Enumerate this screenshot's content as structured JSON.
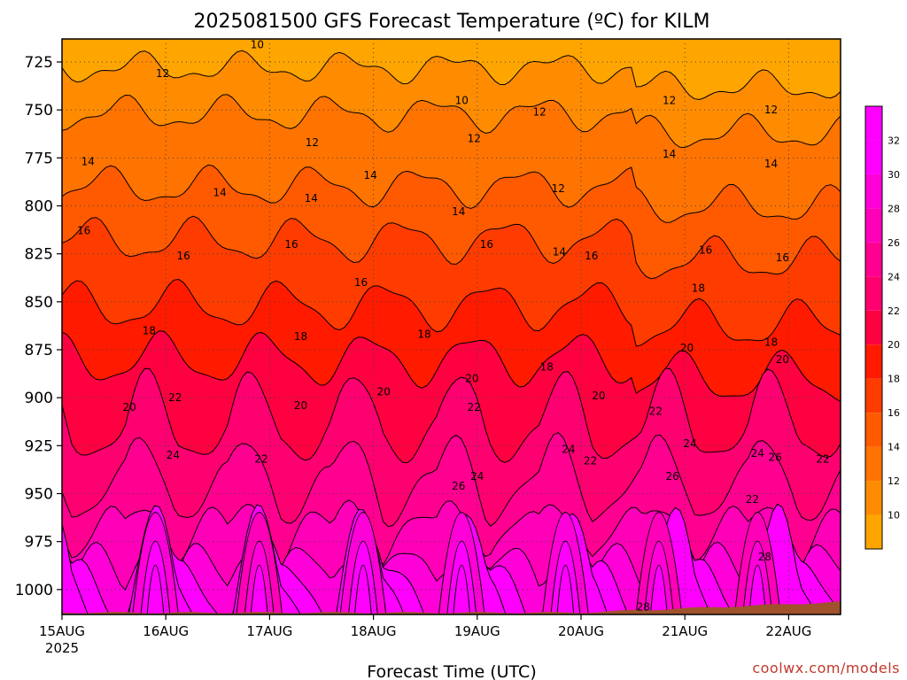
{
  "chart_data": {
    "type": "heatmap",
    "title": "2025081500 GFS Forecast Temperature (ºC) for KILM",
    "xlabel": "Forecast Time (UTC)",
    "ylabel": "",
    "x_ticks": [
      {
        "label": "15AUG",
        "sublabel": "2025",
        "day": 0
      },
      {
        "label": "16AUG",
        "day": 1
      },
      {
        "label": "17AUG",
        "day": 2
      },
      {
        "label": "18AUG",
        "day": 3
      },
      {
        "label": "19AUG",
        "day": 4
      },
      {
        "label": "20AUG",
        "day": 5
      },
      {
        "label": "21AUG",
        "day": 6
      },
      {
        "label": "22AUG",
        "day": 7
      }
    ],
    "xlim": [
      0,
      7.5
    ],
    "y_ticks": [
      725,
      750,
      775,
      800,
      825,
      850,
      875,
      900,
      925,
      950,
      975,
      1000
    ],
    "ylim": [
      1013,
      713
    ],
    "grid": true,
    "colorbar": {
      "levels": [
        10,
        12,
        14,
        16,
        18,
        20,
        22,
        24,
        26,
        28,
        30,
        32
      ],
      "colors": [
        "#ffa500",
        "#ff8c00",
        "#ff7300",
        "#ff5a00",
        "#ff3c00",
        "#ff1a00",
        "#ff0040",
        "#ff0070",
        "#ff0090",
        "#ff00b8",
        "#ff00d8",
        "#ff00ff",
        "#ff00ff"
      ]
    },
    "contour_labels": [
      {
        "value": "10",
        "day": 1.88,
        "p": 716
      },
      {
        "value": "10",
        "day": 3.85,
        "p": 745
      },
      {
        "value": "12",
        "day": 0.97,
        "p": 731
      },
      {
        "value": "12",
        "day": 2.41,
        "p": 767
      },
      {
        "value": "12",
        "day": 3.97,
        "p": 765
      },
      {
        "value": "12",
        "day": 4.6,
        "p": 751
      },
      {
        "value": "12",
        "day": 5.85,
        "p": 745
      },
      {
        "value": "12",
        "day": 6.83,
        "p": 750
      },
      {
        "value": "12",
        "day": 4.78,
        "p": 791
      },
      {
        "value": "14",
        "day": 0.25,
        "p": 777
      },
      {
        "value": "14",
        "day": 1.52,
        "p": 793
      },
      {
        "value": "14",
        "day": 2.4,
        "p": 796
      },
      {
        "value": "14",
        "day": 2.97,
        "p": 784
      },
      {
        "value": "14",
        "day": 3.82,
        "p": 803
      },
      {
        "value": "14",
        "day": 4.79,
        "p": 824
      },
      {
        "value": "14",
        "day": 5.85,
        "p": 773
      },
      {
        "value": "14",
        "day": 6.83,
        "p": 778
      },
      {
        "value": "16",
        "day": 0.21,
        "p": 813
      },
      {
        "value": "16",
        "day": 1.17,
        "p": 826
      },
      {
        "value": "16",
        "day": 2.21,
        "p": 820
      },
      {
        "value": "16",
        "day": 2.88,
        "p": 840
      },
      {
        "value": "16",
        "day": 4.09,
        "p": 820
      },
      {
        "value": "16",
        "day": 5.1,
        "p": 826
      },
      {
        "value": "16",
        "day": 6.2,
        "p": 823
      },
      {
        "value": "16",
        "day": 6.94,
        "p": 827
      },
      {
        "value": "18",
        "day": 0.84,
        "p": 865
      },
      {
        "value": "18",
        "day": 2.3,
        "p": 868
      },
      {
        "value": "18",
        "day": 3.49,
        "p": 867
      },
      {
        "value": "18",
        "day": 4.67,
        "p": 884
      },
      {
        "value": "18",
        "day": 6.13,
        "p": 843
      },
      {
        "value": "18",
        "day": 6.83,
        "p": 871
      },
      {
        "value": "20",
        "day": 0.65,
        "p": 905
      },
      {
        "value": "20",
        "day": 2.3,
        "p": 904
      },
      {
        "value": "20",
        "day": 3.1,
        "p": 897
      },
      {
        "value": "20",
        "day": 3.95,
        "p": 890
      },
      {
        "value": "20",
        "day": 5.17,
        "p": 899
      },
      {
        "value": "20",
        "day": 6.02,
        "p": 874
      },
      {
        "value": "20",
        "day": 6.94,
        "p": 880
      },
      {
        "value": "22",
        "day": 1.09,
        "p": 900
      },
      {
        "value": "22",
        "day": 1.92,
        "p": 932
      },
      {
        "value": "22",
        "day": 3.97,
        "p": 905
      },
      {
        "value": "22",
        "day": 5.09,
        "p": 933
      },
      {
        "value": "22",
        "day": 5.72,
        "p": 907
      },
      {
        "value": "22",
        "day": 6.65,
        "p": 953
      },
      {
        "value": "22",
        "day": 7.33,
        "p": 932
      },
      {
        "value": "24",
        "day": 1.07,
        "p": 930
      },
      {
        "value": "24",
        "day": 4.0,
        "p": 941
      },
      {
        "value": "24",
        "day": 4.88,
        "p": 927
      },
      {
        "value": "24",
        "day": 6.05,
        "p": 924
      },
      {
        "value": "24",
        "day": 6.7,
        "p": 929
      },
      {
        "value": "26",
        "day": 3.82,
        "p": 946
      },
      {
        "value": "26",
        "day": 5.88,
        "p": 941
      },
      {
        "value": "26",
        "day": 6.87,
        "p": 931
      },
      {
        "value": "28",
        "day": 6.77,
        "p": 983
      },
      {
        "value": "28",
        "day": 5.6,
        "p": 1009
      }
    ],
    "daily_peak_temp": [
      {
        "day": 0.9,
        "value": 32
      },
      {
        "day": 1.9,
        "value": 30
      },
      {
        "day": 2.9,
        "value": 32
      },
      {
        "day": 3.85,
        "value": 32
      },
      {
        "day": 4.85,
        "value": 32
      },
      {
        "day": 5.75,
        "value": 30
      },
      {
        "day": 6.7,
        "value": 30
      }
    ]
  },
  "credit": "coolwx.com/models"
}
